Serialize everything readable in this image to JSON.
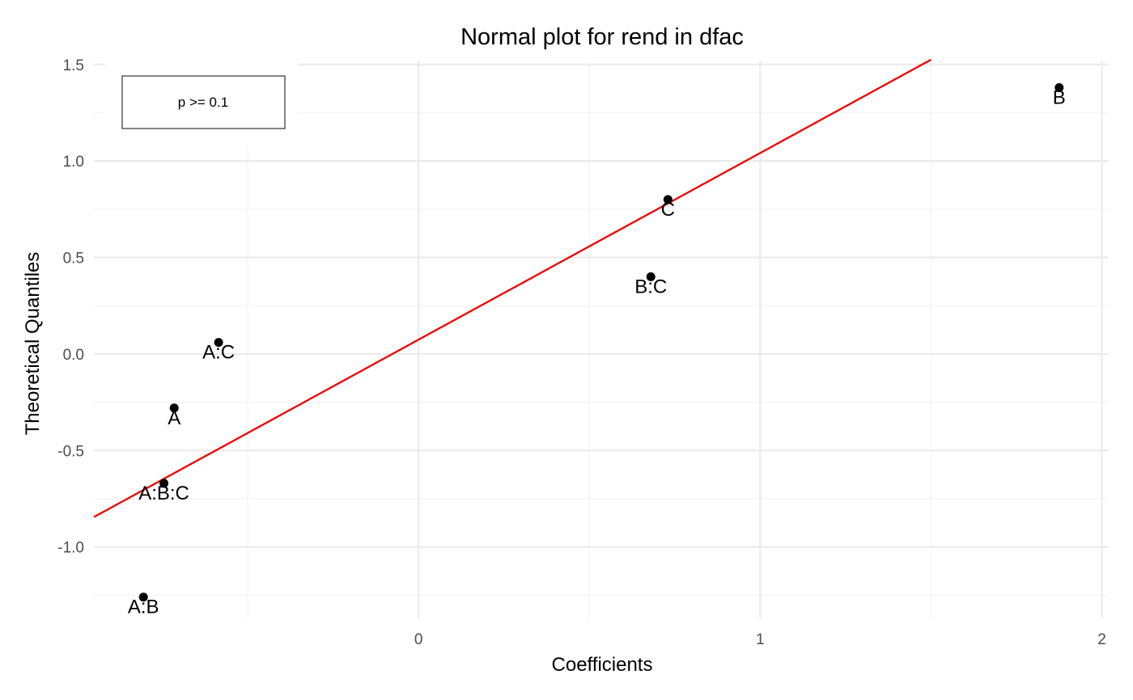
{
  "chart_data": {
    "type": "scatter",
    "title": "Normal plot for rend in dfac",
    "xlabel": "Coefficients",
    "ylabel": "Theoretical Quantiles",
    "xlim": [
      -0.95,
      2.02
    ],
    "ylim": [
      -1.37,
      1.52
    ],
    "x_ticks": [
      0,
      1,
      2
    ],
    "x_tick_labels": [
      "0",
      "1",
      "2"
    ],
    "x_minor_ticks": [
      -0.5,
      0.5,
      1.5
    ],
    "y_ticks": [
      -1.0,
      -0.5,
      0.0,
      0.5,
      1.0,
      1.5
    ],
    "y_tick_labels": [
      "-1.0",
      "-0.5",
      "0.0",
      "0.5",
      "1.0",
      "1.5"
    ],
    "y_minor_ticks": [
      -1.25,
      -0.75,
      -0.25,
      0.25,
      0.75,
      1.25
    ],
    "grid": true,
    "points": [
      {
        "label": "A:B",
        "x": -0.805,
        "y": -1.26
      },
      {
        "label": "A:B:C",
        "x": -0.745,
        "y": -0.67
      },
      {
        "label": "A",
        "x": -0.715,
        "y": -0.28
      },
      {
        "label": "A:C",
        "x": -0.585,
        "y": 0.06
      },
      {
        "label": "B:C",
        "x": 0.68,
        "y": 0.4
      },
      {
        "label": "C",
        "x": 0.73,
        "y": 0.8
      },
      {
        "label": "B",
        "x": 1.875,
        "y": 1.38
      }
    ],
    "reference_line": {
      "color": "#ee0000",
      "x": [
        -0.95,
        1.5
      ],
      "y": [
        -0.845,
        1.525
      ]
    },
    "point_color": "#000000",
    "legend": {
      "position": "top-left",
      "entries": [
        "p >= 0.1"
      ]
    }
  }
}
